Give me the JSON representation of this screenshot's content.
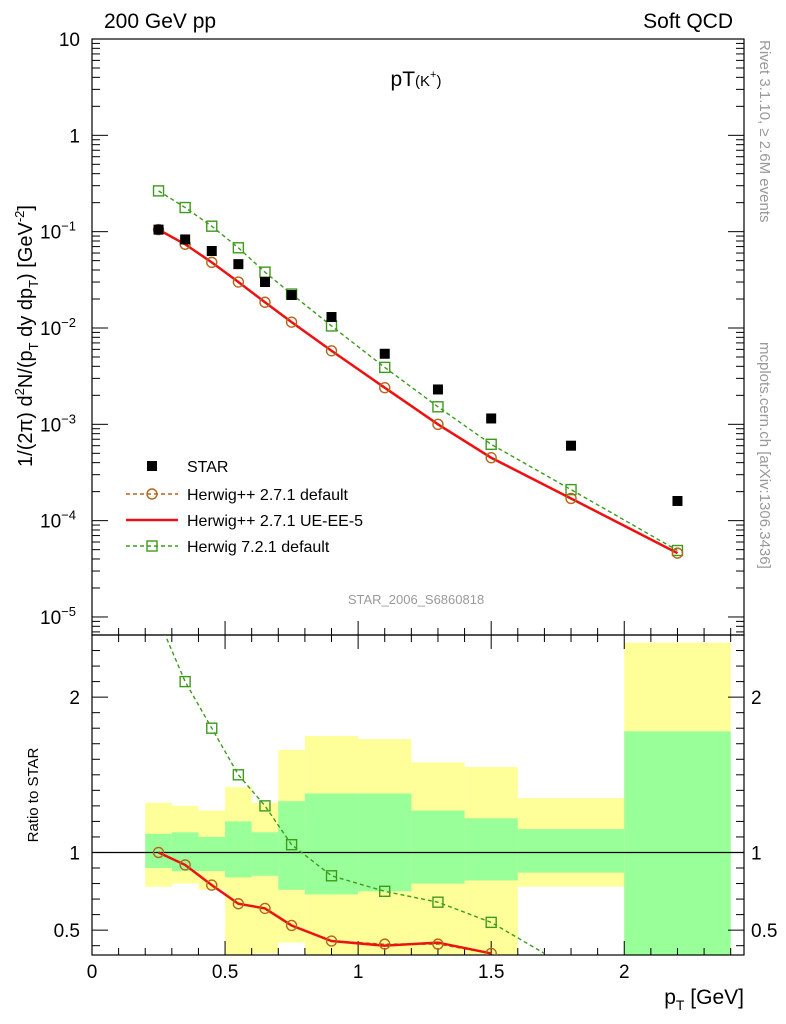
{
  "header": {
    "left": "200 GeV pp",
    "right": "Soft QCD"
  },
  "side_labels": {
    "rivet": "Rivet 3.1.10, ≥ 2.6M events",
    "mcplots": "mcplots.cern.ch [arXiv:1306.3436]"
  },
  "chart_data": {
    "type": "scatter",
    "title_main": "pT",
    "title_sub": "(K",
    "title_sup": "+",
    "title_end": ")",
    "analysis_id": "STAR_2006_S6860818",
    "yscale": "log",
    "xlim": [
      0,
      2.45
    ],
    "ylim": [
      6.5e-06,
      10
    ],
    "ylabel": {
      "p1": "1/(2π) d",
      "s1": "2",
      "p2": "N/(p",
      "s2": "T",
      "p3": " dy dp",
      "s3": "T",
      "p4": ") [GeV",
      "s4": "-2",
      "p5": "]"
    },
    "xlabel": {
      "p1": "p",
      "s1": "T",
      "p2": " [GeV]"
    },
    "x_ticks": [
      "0",
      "0.5",
      "1",
      "1.5",
      "2"
    ],
    "y_ticks": [
      {
        "value": 10,
        "base": "10",
        "exp": ""
      },
      {
        "value": 1,
        "base": "1",
        "exp": ""
      },
      {
        "value": 0.1,
        "base": "10",
        "exp": "−1"
      },
      {
        "value": 0.01,
        "base": "10",
        "exp": "−2"
      },
      {
        "value": 0.001,
        "base": "10",
        "exp": "−3"
      },
      {
        "value": 0.0001,
        "base": "10",
        "exp": "−4"
      },
      {
        "value": 1e-05,
        "base": "10",
        "exp": "−5"
      }
    ],
    "legend_placement": "bottom-left",
    "x": [
      0.25,
      0.35,
      0.45,
      0.55,
      0.65,
      0.75,
      0.9,
      1.1,
      1.3,
      1.5,
      1.8,
      2.2
    ],
    "series": [
      {
        "name": "STAR",
        "style": "square-filled",
        "color": "#000000",
        "values": [
          0.105,
          0.083,
          0.063,
          0.046,
          0.03,
          0.022,
          0.013,
          0.0054,
          0.0023,
          0.00115,
          0.0006,
          0.00016
        ]
      },
      {
        "name": "Herwig++ 2.7.1 default",
        "style": "circle-open-dashed",
        "color": "#b5651d",
        "values": [
          0.105,
          0.074,
          0.048,
          0.03,
          0.0185,
          0.0115,
          0.0058,
          0.0024,
          0.001,
          0.00045,
          0.00017,
          4.6e-05
        ]
      },
      {
        "name": "Herwig++ 2.7.1 UE-EE-5",
        "style": "solid-line",
        "color": "#ee1111",
        "values": [
          0.105,
          0.074,
          0.048,
          0.03,
          0.0185,
          0.0115,
          0.0058,
          0.0024,
          0.001,
          0.00045,
          0.00017,
          4.6e-05
        ]
      },
      {
        "name": "Herwig 7.2.1 default",
        "style": "square-open-dashed",
        "color": "#3e9a1c",
        "values": [
          0.265,
          0.178,
          0.114,
          0.068,
          0.038,
          0.0225,
          0.0105,
          0.0039,
          0.00152,
          0.00062,
          0.00021,
          4.9e-05
        ]
      }
    ],
    "ratio": {
      "ylabel": "Ratio to STAR",
      "ylim": [
        0.34,
        2.4
      ],
      "y_ticks": [
        "0.5",
        "1",
        "2"
      ],
      "bands": [
        {
          "x0": 0.2,
          "x1": 0.3,
          "green": [
            0.9,
            1.12
          ],
          "yellow": [
            0.78,
            1.32
          ]
        },
        {
          "x0": 0.3,
          "x1": 0.4,
          "green": [
            0.88,
            1.13
          ],
          "yellow": [
            0.8,
            1.3
          ]
        },
        {
          "x0": 0.4,
          "x1": 0.5,
          "green": [
            0.88,
            1.1
          ],
          "yellow": [
            0.76,
            1.27
          ]
        },
        {
          "x0": 0.5,
          "x1": 0.6,
          "green": [
            0.84,
            1.2
          ],
          "yellow": [
            0.34,
            1.42
          ]
        },
        {
          "x0": 0.6,
          "x1": 0.7,
          "green": [
            0.85,
            1.13
          ],
          "yellow": [
            0.35,
            1.32
          ]
        },
        {
          "x0": 0.7,
          "x1": 0.8,
          "green": [
            0.76,
            1.33
          ],
          "yellow": [
            0.42,
            1.66
          ]
        },
        {
          "x0": 0.8,
          "x1": 1.0,
          "green": [
            0.73,
            1.38
          ],
          "yellow": [
            0.34,
            1.75
          ]
        },
        {
          "x0": 1.0,
          "x1": 1.2,
          "green": [
            0.75,
            1.38
          ],
          "yellow": [
            0.34,
            1.73
          ]
        },
        {
          "x0": 1.2,
          "x1": 1.4,
          "green": [
            0.8,
            1.27
          ],
          "yellow": [
            0.34,
            1.58
          ]
        },
        {
          "x0": 1.4,
          "x1": 1.6,
          "green": [
            0.82,
            1.22
          ],
          "yellow": [
            0.34,
            1.55
          ]
        },
        {
          "x0": 1.6,
          "x1": 2.0,
          "green": [
            0.87,
            1.15
          ],
          "yellow": [
            0.78,
            1.35
          ]
        },
        {
          "x0": 2.0,
          "x1": 2.4,
          "green": [
            0.34,
            1.78
          ],
          "yellow": [
            0.34,
            2.35
          ]
        }
      ],
      "herwig_pp_default": [
        1.0,
        0.92,
        0.79,
        0.67,
        0.64,
        0.53,
        0.43,
        0.41,
        0.41,
        0.35
      ],
      "herwig_pp_ueee5": [
        1.0,
        0.92,
        0.79,
        0.67,
        0.64,
        0.53,
        0.43,
        0.4,
        0.42,
        0.35
      ],
      "herwig7_default": [
        2.5,
        2.1,
        1.8,
        1.5,
        1.3,
        1.05,
        0.85,
        0.75,
        0.68,
        0.55,
        0.35
      ]
    }
  }
}
